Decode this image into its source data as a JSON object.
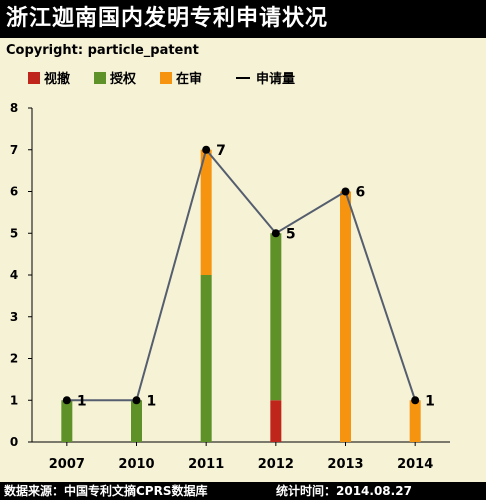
{
  "header": {
    "title": "浙江迦南国内发明专利申请状况",
    "copyright": "Copyright: particle_patent"
  },
  "legend": {
    "withdrawn": "视撤",
    "granted": "授权",
    "pending": "在审",
    "applications": "申请量"
  },
  "colors": {
    "withdrawn": "#c0251c",
    "granted": "#5e9128",
    "pending": "#f6940f",
    "line": "#555e6e",
    "background": "#f6f2d6"
  },
  "chart_data": {
    "type": "bar",
    "stacked": true,
    "categories": [
      "2007",
      "2010",
      "2011",
      "2012",
      "2013",
      "2014"
    ],
    "series": [
      {
        "name": "视撤",
        "values": [
          0,
          0,
          0,
          1,
          0,
          0
        ]
      },
      {
        "name": "授权",
        "values": [
          1,
          1,
          4,
          4,
          0,
          0
        ]
      },
      {
        "name": "在审",
        "values": [
          0,
          0,
          3,
          0,
          6,
          1
        ]
      }
    ],
    "line_series": {
      "name": "申请量",
      "values": [
        1,
        1,
        7,
        5,
        6,
        1
      ]
    },
    "ylim": [
      0,
      8
    ],
    "yticks": [
      0,
      1,
      2,
      3,
      4,
      5,
      6,
      7,
      8
    ],
    "grid": false,
    "legend_position": "top"
  },
  "footer": {
    "source": "数据来源：中国专利文摘CPRS数据库",
    "time": "统计时间：2014.08.27"
  }
}
